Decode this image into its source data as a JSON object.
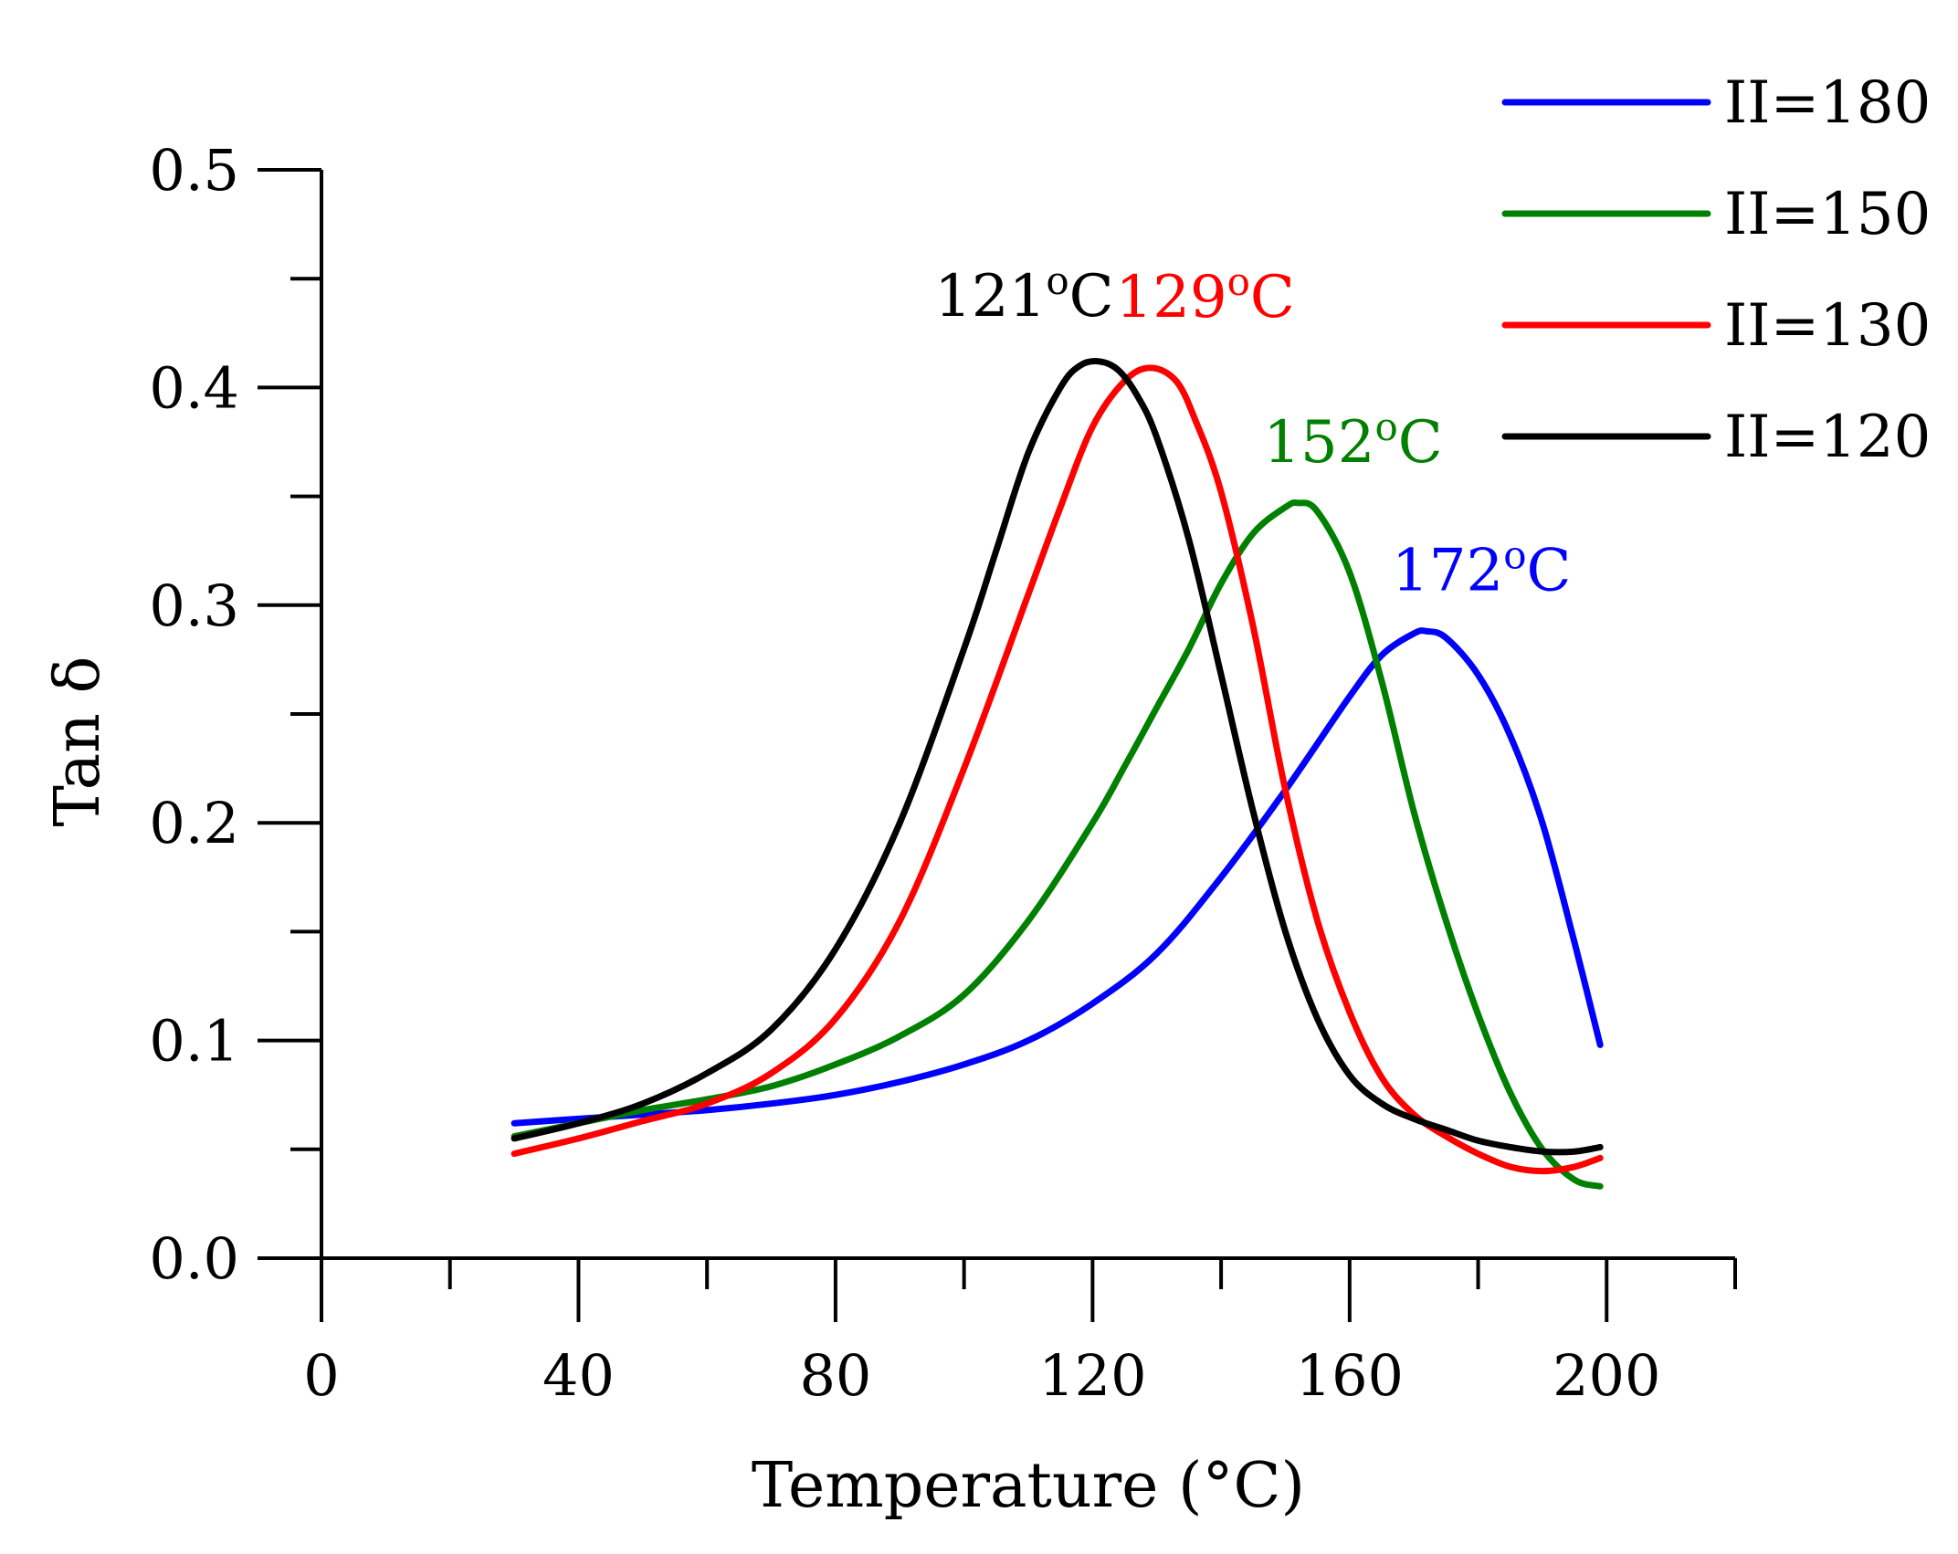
{
  "chart_data": {
    "type": "line",
    "title": "",
    "xlabel": "Temperature (°C)",
    "ylabel": "Tan δ",
    "xlim": [
      0,
      220
    ],
    "ylim": [
      0,
      0.5
    ],
    "x_ticks": [
      0,
      40,
      80,
      120,
      160,
      200
    ],
    "x_tick_labels": [
      "0",
      "40",
      "80",
      "120",
      "160",
      "200"
    ],
    "x_minor_step": 20,
    "y_ticks": [
      0,
      0.1,
      0.2,
      0.3,
      0.4,
      0.5
    ],
    "y_tick_labels": [
      "0.0",
      "0.1",
      "0.2",
      "0.3",
      "0.4",
      "0.5"
    ],
    "y_minor_step": 0.05,
    "grid": false,
    "legend_position": "top-right",
    "series": [
      {
        "name": "II=180",
        "color": "#0000ff",
        "peak_label": {
          "prefix": "172",
          "degree": "o",
          "unit": "C",
          "x": 172,
          "y": 0.288
        },
        "x": [
          30,
          40,
          50,
          60,
          70,
          80,
          90,
          100,
          110,
          120,
          130,
          140,
          150,
          160,
          165,
          170,
          172,
          175,
          180,
          185,
          190,
          195,
          199
        ],
        "y": [
          0.062,
          0.064,
          0.066,
          0.068,
          0.071,
          0.075,
          0.081,
          0.089,
          0.1,
          0.117,
          0.14,
          0.175,
          0.215,
          0.258,
          0.277,
          0.287,
          0.288,
          0.285,
          0.268,
          0.24,
          0.2,
          0.145,
          0.098
        ]
      },
      {
        "name": "II=150",
        "color": "#008000",
        "peak_label": {
          "prefix": "152",
          "degree": "o",
          "unit": "C",
          "x": 152,
          "y": 0.347
        },
        "x": [
          30,
          40,
          50,
          60,
          70,
          80,
          90,
          100,
          110,
          120,
          125,
          130,
          135,
          140,
          145,
          150,
          152,
          155,
          160,
          165,
          170,
          175,
          180,
          185,
          190,
          195,
          199
        ],
        "y": [
          0.056,
          0.062,
          0.068,
          0.073,
          0.079,
          0.089,
          0.102,
          0.121,
          0.155,
          0.2,
          0.226,
          0.253,
          0.28,
          0.31,
          0.333,
          0.345,
          0.347,
          0.343,
          0.315,
          0.265,
          0.205,
          0.155,
          0.112,
          0.076,
          0.05,
          0.036,
          0.033
        ]
      },
      {
        "name": "II=130",
        "color": "#ff0000",
        "peak_label": {
          "prefix": "129",
          "degree": "o",
          "unit": "C",
          "x": 129,
          "y": 0.409
        },
        "x": [
          30,
          40,
          50,
          60,
          70,
          80,
          90,
          100,
          110,
          115,
          120,
          125,
          129,
          133,
          136,
          140,
          145,
          150,
          155,
          160,
          165,
          170,
          175,
          180,
          185,
          190,
          195,
          199
        ],
        "y": [
          0.048,
          0.055,
          0.063,
          0.071,
          0.085,
          0.11,
          0.155,
          0.225,
          0.305,
          0.345,
          0.382,
          0.403,
          0.409,
          0.403,
          0.385,
          0.352,
          0.29,
          0.215,
          0.155,
          0.113,
          0.083,
          0.066,
          0.056,
          0.048,
          0.042,
          0.04,
          0.042,
          0.046
        ]
      },
      {
        "name": "II=120",
        "color": "#000000",
        "peak_label": {
          "prefix": "121",
          "degree": "o",
          "unit": "C",
          "x": 121,
          "y": 0.412
        },
        "x": [
          30,
          40,
          50,
          60,
          70,
          80,
          90,
          100,
          105,
          110,
          115,
          118,
          121,
          124,
          127,
          130,
          135,
          140,
          145,
          150,
          155,
          160,
          165,
          170,
          175,
          180,
          185,
          190,
          195,
          199
        ],
        "y": [
          0.055,
          0.062,
          0.071,
          0.085,
          0.105,
          0.142,
          0.2,
          0.28,
          0.325,
          0.37,
          0.4,
          0.41,
          0.412,
          0.408,
          0.396,
          0.377,
          0.33,
          0.268,
          0.205,
          0.15,
          0.11,
          0.084,
          0.071,
          0.064,
          0.059,
          0.054,
          0.051,
          0.049,
          0.049,
          0.051
        ]
      }
    ]
  }
}
